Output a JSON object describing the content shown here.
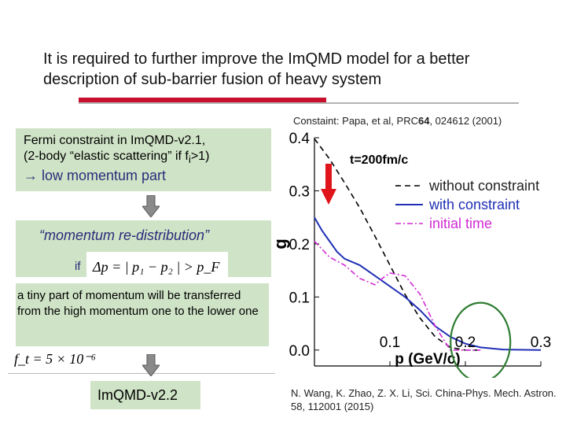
{
  "slide": {
    "title": "It is required to further improve the ImQMD model for a better description of sub-barrier fusion of heavy system",
    "citation_top_prefix": "Constaint: Papa, et al, PRC",
    "citation_top_volume": "64",
    "citation_top_suffix": ", 024612 (2001)",
    "box1": {
      "line1": "Fermi constraint in ImQMD-v2.1,",
      "line2_pre": " (2-body “elastic scattering” if f",
      "line2_sub": "i",
      "line2_post": ">1)",
      "line3_arrow": "→",
      "line3_text": " low momentum part"
    },
    "box2": {
      "quote": "“momentum re-distribution”",
      "if_label": "if",
      "formula": "Δp = | p₁ − p₂ | > p_F"
    },
    "box3": {
      "text": "a tiny part of momentum will be transferred from the high momentum one to the lower one"
    },
    "ft_formula": "f_t = 5 × 10⁻⁶",
    "box4": {
      "label": "ImQMD-v2.2"
    },
    "citation_bottom": "N. Wang, K. Zhao, Z. X. Li, Sci. China-Phys. Mech. Astron. 58, 112001 (2015)",
    "colors": {
      "box_fill": "#cfe3c6",
      "title_bar": "#c8102e",
      "without_constraint": "#000000",
      "with_constraint": "#1f2fb5",
      "initial_time": "#d12ad4",
      "highlight_circle": "#2e7d32",
      "pointer_arrow": "#e0141b"
    },
    "icons": {
      "down_arrow_1": "gray-down-arrow-icon",
      "down_arrow_2": "gray-down-arrow-icon",
      "pointer": "red-down-arrow-icon",
      "highlight": "green-ellipse"
    }
  },
  "chart_data": {
    "type": "line",
    "annotation": "t=200fm/c",
    "xlabel": "p (GeV/c)",
    "ylabel": "g",
    "xlim": [
      0.0,
      0.3
    ],
    "ylim": [
      -0.03,
      0.4
    ],
    "xticks": [
      0.1,
      0.2,
      0.3
    ],
    "yticks": [
      0.0,
      0.1,
      0.2,
      0.3,
      0.4
    ],
    "xtick_labels": [
      "0.1",
      "0.2",
      "0.3"
    ],
    "ytick_labels": [
      "0.0",
      "0.1",
      "0.2",
      "0.3",
      "0.4"
    ],
    "legend_position": "top-right",
    "series": [
      {
        "name": "without constraint",
        "style": "dashed",
        "x": [
          0.0,
          0.02,
          0.04,
          0.06,
          0.08,
          0.1,
          0.12,
          0.14,
          0.16,
          0.18,
          0.2,
          0.22
        ],
        "y": [
          0.398,
          0.36,
          0.315,
          0.268,
          0.215,
          0.16,
          0.105,
          0.06,
          0.025,
          0.005,
          0.0,
          0.0
        ]
      },
      {
        "name": "with constraint",
        "style": "solid",
        "x": [
          0.0,
          0.01,
          0.02,
          0.03,
          0.04,
          0.06,
          0.08,
          0.1,
          0.12,
          0.14,
          0.16,
          0.18,
          0.2,
          0.22,
          0.25,
          0.3
        ],
        "y": [
          0.25,
          0.225,
          0.205,
          0.185,
          0.172,
          0.16,
          0.14,
          0.12,
          0.1,
          0.075,
          0.045,
          0.025,
          0.012,
          0.005,
          0.001,
          0.0
        ]
      },
      {
        "name": "initial time",
        "style": "dashdot",
        "x": [
          0.0,
          0.02,
          0.04,
          0.06,
          0.08,
          0.09,
          0.1,
          0.12,
          0.14,
          0.16,
          0.18,
          0.2,
          0.22
        ],
        "y": [
          0.205,
          0.175,
          0.16,
          0.135,
          0.123,
          0.135,
          0.145,
          0.14,
          0.105,
          0.045,
          0.0,
          0.0,
          0.0
        ]
      }
    ]
  }
}
